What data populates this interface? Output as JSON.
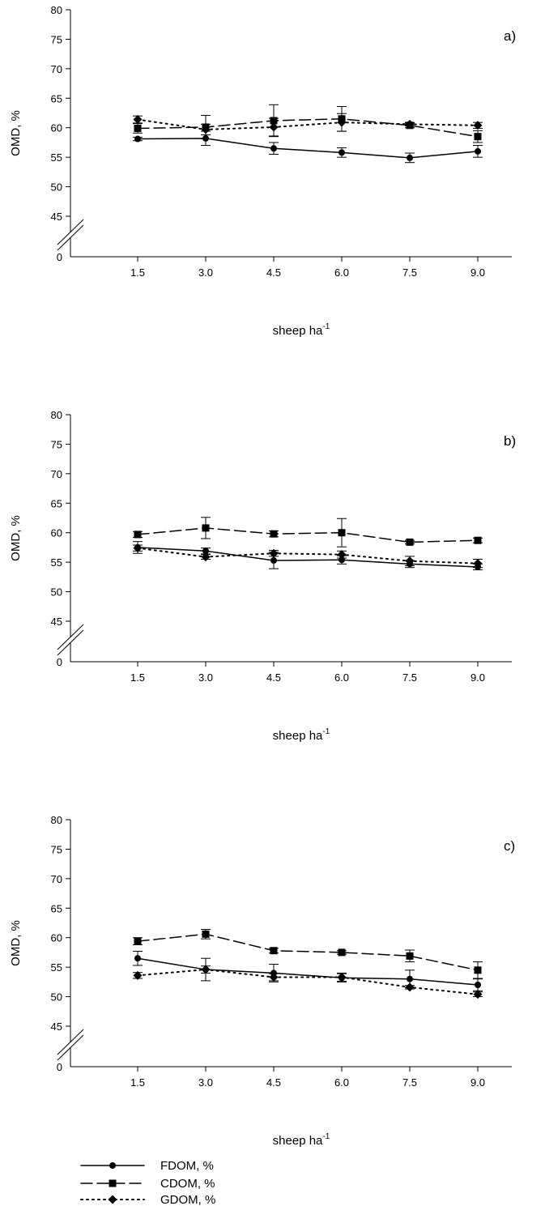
{
  "chart_data": [
    {
      "type": "line",
      "panel_label": "a)",
      "xlabel": "sheep ha",
      "xlabel_superscript": "-1",
      "ylabel": "OMD, %",
      "x": [
        1.5,
        3.0,
        4.5,
        6.0,
        7.5,
        9.0
      ],
      "x_tick_labels": [
        "1.5",
        "3.0",
        "4.5",
        "6.0",
        "7.5",
        "9.0"
      ],
      "y_tick_labels": [
        "0",
        "45",
        "50",
        "55",
        "60",
        "65",
        "70",
        "75",
        "80"
      ],
      "ylim": [
        45,
        80
      ],
      "axis_break": true,
      "grid": false,
      "series": [
        {
          "name": "FDOM, %",
          "values": [
            58.1,
            58.2,
            56.5,
            55.8,
            54.9,
            56.0
          ],
          "errors": [
            0.3,
            1.2,
            1.0,
            0.8,
            0.8,
            1.0
          ]
        },
        {
          "name": "CDOM, %",
          "values": [
            59.9,
            60.1,
            61.2,
            61.5,
            60.4,
            58.5
          ],
          "errors": [
            0.8,
            2.0,
            2.7,
            2.1,
            0.4,
            1.0
          ]
        },
        {
          "name": "GDOM, %",
          "values": [
            61.4,
            59.7,
            60.1,
            60.9,
            60.6,
            60.4
          ],
          "errors": [
            0.6,
            0.9,
            1.5,
            1.5,
            0.3,
            0.5
          ]
        }
      ]
    },
    {
      "type": "line",
      "panel_label": "b)",
      "xlabel": "sheep ha",
      "xlabel_superscript": "-1",
      "ylabel": "OMD, %",
      "x": [
        1.5,
        3.0,
        4.5,
        6.0,
        7.5,
        9.0
      ],
      "x_tick_labels": [
        "1.5",
        "3.0",
        "4.5",
        "6.0",
        "7.5",
        "9.0"
      ],
      "y_tick_labels": [
        "0",
        "45",
        "50",
        "55",
        "60",
        "65",
        "70",
        "75",
        "80"
      ],
      "ylim": [
        45,
        80
      ],
      "axis_break": true,
      "grid": false,
      "series": [
        {
          "name": "FDOM, %",
          "values": [
            57.5,
            56.9,
            55.3,
            55.4,
            54.7,
            54.2
          ],
          "errors": [
            1.0,
            0.5,
            1.4,
            0.7,
            0.6,
            0.5
          ]
        },
        {
          "name": "CDOM, %",
          "values": [
            59.7,
            60.8,
            59.8,
            60.0,
            58.4,
            58.7
          ],
          "errors": [
            0.5,
            1.8,
            0.5,
            2.4,
            0.3,
            0.4
          ]
        },
        {
          "name": "GDOM, %",
          "values": [
            57.4,
            55.9,
            56.5,
            56.3,
            55.2,
            54.8
          ],
          "errors": [
            0.5,
            0.4,
            0.5,
            0.6,
            0.8,
            0.7
          ]
        }
      ]
    },
    {
      "type": "line",
      "panel_label": "c)",
      "xlabel": "sheep ha",
      "xlabel_superscript": "-1",
      "ylabel": "OMD, %",
      "x": [
        1.5,
        3.0,
        4.5,
        6.0,
        7.5,
        9.0
      ],
      "x_tick_labels": [
        "1.5",
        "3.0",
        "4.5",
        "6.0",
        "7.5",
        "9.0"
      ],
      "y_tick_labels": [
        "0",
        "45",
        "50",
        "55",
        "60",
        "65",
        "70",
        "75",
        "80"
      ],
      "ylim": [
        45,
        80
      ],
      "axis_break": true,
      "grid": false,
      "series": [
        {
          "name": "FDOM, %",
          "values": [
            56.5,
            54.6,
            54.0,
            53.2,
            53.0,
            52.0
          ],
          "errors": [
            1.2,
            1.9,
            1.5,
            0.7,
            1.5,
            1.0
          ]
        },
        {
          "name": "CDOM, %",
          "values": [
            59.4,
            60.6,
            57.8,
            57.5,
            56.9,
            54.5
          ],
          "errors": [
            0.6,
            0.8,
            0.4,
            0.3,
            1.0,
            1.4
          ]
        },
        {
          "name": "GDOM, %",
          "values": [
            53.6,
            54.6,
            53.3,
            53.3,
            51.6,
            50.4
          ],
          "errors": [
            0.5,
            0.6,
            0.6,
            0.7,
            0.3,
            0.4
          ]
        }
      ]
    }
  ],
  "legend": {
    "placement": "bottom-left",
    "entries": [
      {
        "label": "FDOM, %",
        "line_style": "solid",
        "marker": "circle"
      },
      {
        "label": "CDOM, %",
        "line_style": "dashed",
        "marker": "square"
      },
      {
        "label": "GDOM, %",
        "line_style": "dotted",
        "marker": "diamond"
      }
    ]
  },
  "colors": {
    "ink": "#000000",
    "background": "#ffffff"
  }
}
